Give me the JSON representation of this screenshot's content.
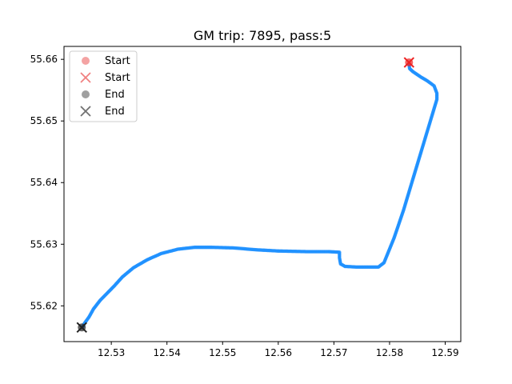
{
  "chart_data": {
    "type": "scatter",
    "title": "GM trip: 7895, pass:5",
    "xlabel": "",
    "ylabel": "",
    "xlim": [
      12.5215,
      12.5928
    ],
    "ylim": [
      55.6142,
      55.6621
    ],
    "xticks": [
      12.53,
      12.54,
      12.55,
      12.56,
      12.57,
      12.58,
      12.59
    ],
    "xtick_labels": [
      "12.53",
      "12.54",
      "12.55",
      "12.56",
      "12.57",
      "12.58",
      "12.59"
    ],
    "yticks": [
      55.62,
      55.63,
      55.64,
      55.65,
      55.66
    ],
    "ytick_labels": [
      "55.62",
      "55.63",
      "55.64",
      "55.65",
      "55.66"
    ],
    "grid": false,
    "legend_position": "upper-left",
    "legend": [
      {
        "label": "Start",
        "marker": "circle",
        "color": "#f4a3a3"
      },
      {
        "label": "Start",
        "marker": "x",
        "color": "#f08080"
      },
      {
        "label": "End",
        "marker": "circle",
        "color": "#a0a0a0"
      },
      {
        "label": "End",
        "marker": "x",
        "color": "#707070"
      }
    ],
    "series": [
      {
        "color": "#1e90ff",
        "points": [
          [
            12.5835,
            55.6592
          ],
          [
            12.5836,
            55.6585
          ],
          [
            12.5842,
            55.658
          ],
          [
            12.5855,
            55.6572
          ],
          [
            12.5868,
            55.6565
          ],
          [
            12.588,
            55.6557
          ],
          [
            12.5885,
            55.6545
          ],
          [
            12.5885,
            55.6535
          ],
          [
            12.587,
            55.649
          ],
          [
            12.5855,
            55.6445
          ],
          [
            12.584,
            55.64
          ],
          [
            12.5825,
            55.6355
          ],
          [
            12.5808,
            55.631
          ],
          [
            12.579,
            55.627
          ],
          [
            12.578,
            55.6263
          ],
          [
            12.576,
            55.6263
          ],
          [
            12.574,
            55.6263
          ],
          [
            12.572,
            55.6264
          ],
          [
            12.5712,
            55.6268
          ],
          [
            12.571,
            55.6278
          ],
          [
            12.571,
            55.6287
          ],
          [
            12.569,
            55.6288
          ],
          [
            12.565,
            55.6288
          ],
          [
            12.56,
            55.6289
          ],
          [
            12.556,
            55.6291
          ],
          [
            12.552,
            55.6294
          ],
          [
            12.548,
            55.6295
          ],
          [
            12.545,
            55.6295
          ],
          [
            12.542,
            55.6292
          ],
          [
            12.539,
            55.6285
          ],
          [
            12.5365,
            55.6275
          ],
          [
            12.534,
            55.6262
          ],
          [
            12.532,
            55.6247
          ],
          [
            12.5305,
            55.6232
          ],
          [
            12.5292,
            55.622
          ],
          [
            12.528,
            55.6209
          ],
          [
            12.5268,
            55.6195
          ],
          [
            12.526,
            55.6182
          ],
          [
            12.5252,
            55.6172
          ],
          [
            12.5248,
            55.6165
          ]
        ]
      }
    ],
    "start": {
      "x": 12.5835,
      "y": 55.6595,
      "color": "#ee2222"
    },
    "end": {
      "x": 12.5247,
      "y": 55.6165,
      "color": "#222222"
    }
  }
}
